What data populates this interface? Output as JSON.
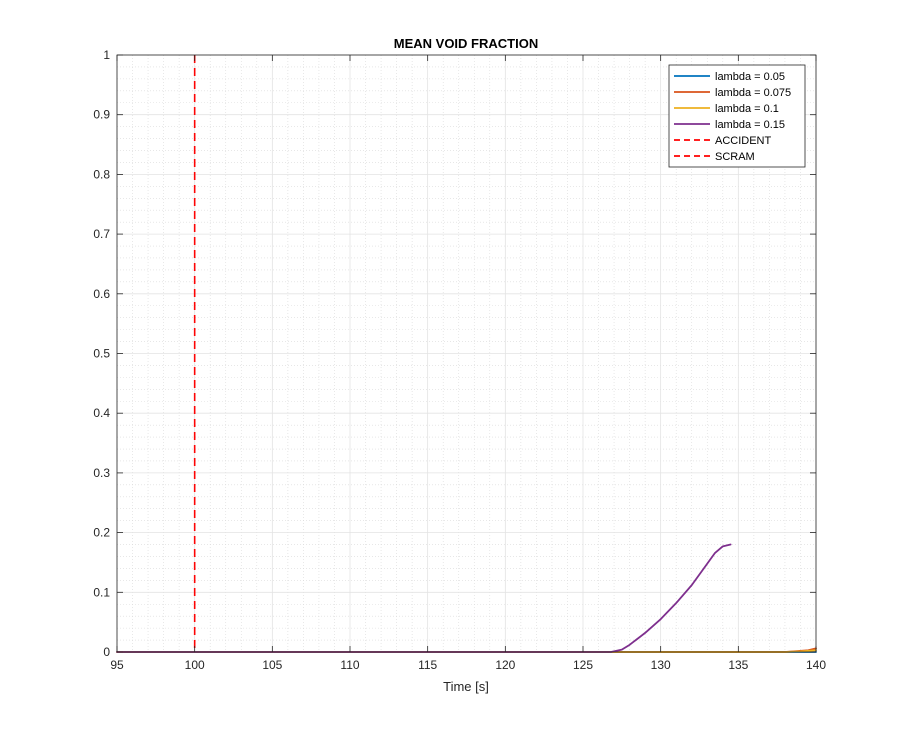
{
  "chart_data": {
    "type": "line",
    "title": "MEAN VOID FRACTION",
    "xlabel": "Time [s]",
    "ylabel": "",
    "xlim": [
      95,
      140
    ],
    "ylim": [
      0,
      1
    ],
    "xticks": [
      "95",
      "100",
      "105",
      "110",
      "115",
      "120",
      "125",
      "130",
      "135",
      "140"
    ],
    "yticks": [
      "0",
      "0.1",
      "0.2",
      "0.3",
      "0.4",
      "0.5",
      "0.6",
      "0.7",
      "0.8",
      "0.9",
      "1"
    ],
    "grid": true,
    "minor_grid": true,
    "legend_position": "top-right",
    "series": [
      {
        "name": "lambda = 0.05",
        "color": "#0072BD",
        "style": "solid",
        "x": [
          95,
          100,
          110,
          120,
          130,
          140
        ],
        "y": [
          0,
          0,
          0,
          0,
          0,
          0
        ]
      },
      {
        "name": "lambda = 0.075",
        "color": "#D95319",
        "style": "solid",
        "x": [
          95,
          100,
          110,
          120,
          130,
          138,
          139.5,
          140
        ],
        "y": [
          0,
          0,
          0,
          0,
          0,
          0,
          0.003,
          0.006
        ]
      },
      {
        "name": "lambda = 0.1",
        "color": "#EDB120",
        "style": "solid",
        "x": [
          95,
          100,
          110,
          120,
          130,
          138,
          139,
          140
        ],
        "y": [
          0,
          0,
          0,
          0,
          0,
          0,
          0.001,
          0.003
        ]
      },
      {
        "name": "lambda = 0.15",
        "color": "#7E2F8E",
        "style": "solid",
        "x": [
          95,
          100,
          110,
          120,
          126.8,
          127.5,
          128,
          129,
          130,
          131,
          132,
          133,
          133.5,
          134,
          134.5
        ],
        "y": [
          0,
          0,
          0,
          0,
          0,
          0.004,
          0.012,
          0.032,
          0.055,
          0.082,
          0.112,
          0.148,
          0.166,
          0.177,
          0.18
        ]
      }
    ],
    "vlines": [
      {
        "name": "ACCIDENT",
        "x": 100,
        "color": "#FF0000",
        "style": "dashed"
      },
      {
        "name": "SCRAM",
        "x": 100,
        "color": "#FF0000",
        "style": "dashed"
      }
    ]
  }
}
